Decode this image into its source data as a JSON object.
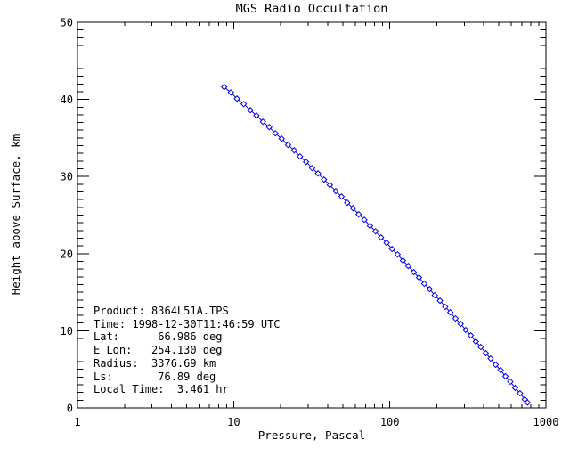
{
  "title": "MGS Radio Occultation",
  "colors": {
    "background": "#FFFFFF",
    "axis": "#000000",
    "text": "#000000",
    "data_series": "#0000E0"
  },
  "chart_data": {
    "type": "line",
    "title": "MGS Radio Occultation",
    "xlabel": "Pressure, Pascal",
    "ylabel": "Height above Surface, km",
    "xscale": "log",
    "yscale": "linear",
    "xlim": [
      1,
      1000
    ],
    "ylim": [
      0,
      50
    ],
    "x_major_ticks": [
      1,
      10,
      100,
      1000
    ],
    "x_tick_labels": [
      "1",
      "10",
      "100",
      "1000"
    ],
    "x_minor_ticks_per_decade": [
      2,
      3,
      4,
      5,
      6,
      7,
      8,
      9
    ],
    "y_major_ticks": [
      0,
      10,
      20,
      30,
      40,
      50
    ],
    "y_tick_labels": [
      "0",
      "10",
      "20",
      "30",
      "40",
      "50"
    ],
    "y_minor_step": 1,
    "grid": false,
    "legend": "none",
    "marker": "open-diamond",
    "point_format": [
      "pressure_pascal",
      "height_km"
    ],
    "series": [
      {
        "name": "occultation-profile",
        "color": "#0000E0",
        "points": [
          [
            8.7,
            41.6
          ],
          [
            9.6,
            40.9
          ],
          [
            10.5,
            40.1
          ],
          [
            11.6,
            39.4
          ],
          [
            12.8,
            38.6
          ],
          [
            14.0,
            37.9
          ],
          [
            15.4,
            37.1
          ],
          [
            16.9,
            36.4
          ],
          [
            18.5,
            35.6
          ],
          [
            20.3,
            34.9
          ],
          [
            22.3,
            34.1
          ],
          [
            24.4,
            33.4
          ],
          [
            26.6,
            32.6
          ],
          [
            29.1,
            31.9
          ],
          [
            31.8,
            31.1
          ],
          [
            34.7,
            30.4
          ],
          [
            37.9,
            29.6
          ],
          [
            41.3,
            28.9
          ],
          [
            45.1,
            28.1
          ],
          [
            49.1,
            27.4
          ],
          [
            53.4,
            26.6
          ],
          [
            58.1,
            25.9
          ],
          [
            63.2,
            25.1
          ],
          [
            68.7,
            24.4
          ],
          [
            74.6,
            23.6
          ],
          [
            81.0,
            22.9
          ],
          [
            87.9,
            22.1
          ],
          [
            95.4,
            21.4
          ],
          [
            103.4,
            20.6
          ],
          [
            112.1,
            19.9
          ],
          [
            121.4,
            19.1
          ],
          [
            131.4,
            18.4
          ],
          [
            142.2,
            17.6
          ],
          [
            153.9,
            16.9
          ],
          [
            166.4,
            16.1
          ],
          [
            179.8,
            15.4
          ],
          [
            194.2,
            14.6
          ],
          [
            209.7,
            13.9
          ],
          [
            226.5,
            13.1
          ],
          [
            244.3,
            12.4
          ],
          [
            263.5,
            11.6
          ],
          [
            284.2,
            10.9
          ],
          [
            306.4,
            10.1
          ],
          [
            330.1,
            9.4
          ],
          [
            355.5,
            8.6
          ],
          [
            382.7,
            7.9
          ],
          [
            411.7,
            7.1
          ],
          [
            442.9,
            6.4
          ],
          [
            476.4,
            5.6
          ],
          [
            512.4,
            4.9
          ],
          [
            550.5,
            4.1
          ],
          [
            591.4,
            3.4
          ],
          [
            635.5,
            2.6
          ],
          [
            682.2,
            1.9
          ],
          [
            732.2,
            1.1
          ],
          [
            762.1,
            0.7
          ]
        ]
      }
    ]
  },
  "annotation": {
    "lines": [
      "Product: 8364L51A.TPS",
      "Time: 1998-12-30T11:46:59 UTC",
      "Lat:      66.986 deg",
      "E Lon:   254.130 deg",
      "Radius:  3376.69 km",
      "Ls:       76.89 deg",
      "Local Time:  3.461 hr"
    ]
  }
}
